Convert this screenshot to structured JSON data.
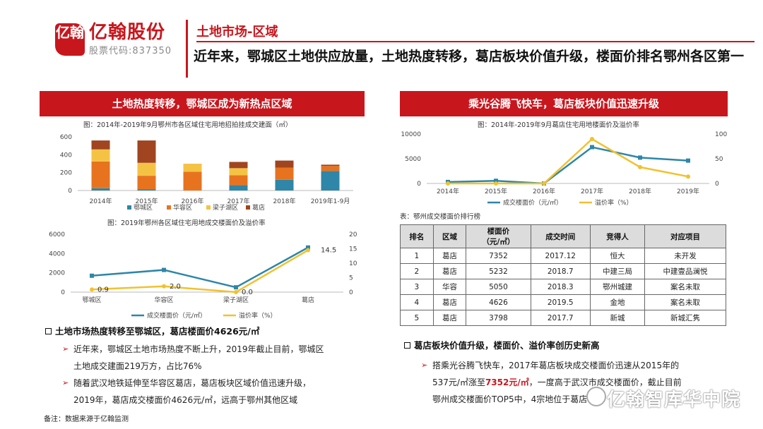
{
  "brand": {
    "mark": "亿翰",
    "name": "亿翰股份",
    "stock_code": "股票代码:837350"
  },
  "section_title": "土地市场-区域",
  "headline": "近年来，鄂城区土地供应放量，土地热度转移，葛店板块价值升级，楼面价排名鄂州各区第一",
  "left": {
    "banner": "土地热度转移，鄂城区成为新热点区域",
    "chart1_caption": "图：2014年-2019年9月鄂州市各区域住宅用地招拍挂成交建面（㎡）",
    "chart2_caption": "图：2019年鄂州各区域住宅用地成交楼面价及溢价率",
    "bullet_heading": "土地市场热度转移至鄂城区，葛店楼面价4626元/㎡",
    "bullets": [
      {
        "line1": "近年来，鄂城区土地市场热度不断上升，2019年截止目前，鄂城区",
        "line2": "土地成交建面219万方，占比76%"
      },
      {
        "line1": "随着武汉地铁延伸至华容区葛店，葛店板块区域价值迅速升级，",
        "line2": "2019年，葛店成交楼面价4626元/㎡，远高于鄂州其他区域"
      }
    ],
    "note": "备注：数据来源于亿翰监测"
  },
  "right": {
    "banner": "乘光谷腾飞快车，葛店板块价值迅速升级",
    "chart3_caption": "图：2014年-2019年9月葛店住宅用地楼面价及溢价率",
    "table_caption": "表：鄂州成交楼面价排行榜",
    "table": {
      "headers": [
        "排名",
        "区域",
        "楼面价\n（元/㎡）",
        "成交时间",
        "竞得人",
        "对应项目"
      ],
      "rows": [
        [
          "1",
          "葛店",
          "7352",
          "2017.12",
          "恒大",
          "未开发"
        ],
        [
          "2",
          "葛店",
          "5232",
          "2018.7",
          "中建三局",
          "中建壹品澜悦"
        ],
        [
          "3",
          "华容",
          "5050",
          "2018.3",
          "鄂州城建",
          "案名未取"
        ],
        [
          "4",
          "葛店",
          "4626",
          "2019.5",
          "金地",
          "案名未取"
        ],
        [
          "5",
          "葛店",
          "3798",
          "2017.7",
          "新城",
          "新城汇隽"
        ]
      ]
    },
    "bullet_heading": "葛店板块价值升级，楼面价、溢价率创历史新高",
    "bullet": {
      "line1": "搭乘光谷腾飞快车，2017年葛店板块成交楼面价迅速从2015年的",
      "line2_a": "537元/㎡涨至",
      "line2_b": "7352元/㎡",
      "line2_c": "，一度高于武汉市成交楼面价，截止目前",
      "line3": "鄂州成交楼面价TOP5中，4宗地位于葛店"
    }
  },
  "watermark": "亿翰智库华中院",
  "colors": {
    "red": "#c8161d",
    "teal": "#2e86a8",
    "orange": "#e8731f",
    "gold": "#f5c343",
    "brown": "#a0451f",
    "yellow_line": "#f2c12e"
  },
  "chart_data": [
    {
      "type": "bar",
      "stacked": true,
      "categories": [
        "2014年",
        "2015年",
        "2016年",
        "2017年",
        "2018年",
        "2019年1-9月"
      ],
      "series": [
        {
          "name": "鄂城区",
          "values": [
            25,
            15,
            0,
            60,
            120,
            219
          ]
        },
        {
          "name": "华容区",
          "values": [
            300,
            150,
            210,
            110,
            135,
            55
          ]
        },
        {
          "name": "梁子湖区",
          "values": [
            135,
            145,
            90,
            80,
            0,
            0
          ]
        },
        {
          "name": "葛店",
          "values": [
            100,
            250,
            0,
            70,
            80,
            15
          ]
        }
      ],
      "ylim": [
        0,
        600
      ],
      "yticks": [
        0,
        200,
        400,
        600
      ],
      "legend": "bottom"
    },
    {
      "type": "line",
      "categories": [
        "鄂城区",
        "华容区",
        "梁子湖区",
        "葛店"
      ],
      "series": [
        {
          "name": "成交楼面价（元/㎡）",
          "axis": "left",
          "values": [
            1700,
            2300,
            500,
            4626
          ]
        },
        {
          "name": "溢价率（%）",
          "axis": "right",
          "values": [
            0.9,
            2.0,
            0.0,
            14.5
          ]
        }
      ],
      "ylim_left": [
        0,
        6000
      ],
      "yticks_left": [
        0,
        2000,
        4000,
        6000
      ],
      "ylim_right": [
        0,
        20
      ],
      "yticks_right": [
        0,
        5,
        10,
        15,
        20
      ],
      "data_labels": [
        "0.9",
        "2.0",
        "0.0",
        "14.5"
      ],
      "legend": "bottom"
    },
    {
      "type": "line",
      "categories": [
        "2014年",
        "2015年",
        "2016年",
        "2017年",
        "2018年",
        "2019年"
      ],
      "series": [
        {
          "name": "成交楼面价（元/㎡）",
          "axis": "left",
          "values": [
            300,
            537,
            0,
            7352,
            5232,
            4626
          ]
        },
        {
          "name": "溢价率（%）",
          "axis": "right",
          "values": [
            0,
            0,
            0,
            90,
            33,
            14
          ]
        }
      ],
      "ylim_left": [
        0,
        10000
      ],
      "yticks_left": [
        0,
        5000,
        10000
      ],
      "ylim_right": [
        0,
        100
      ],
      "yticks_right": [
        0,
        50,
        100
      ],
      "legend": "bottom"
    }
  ]
}
